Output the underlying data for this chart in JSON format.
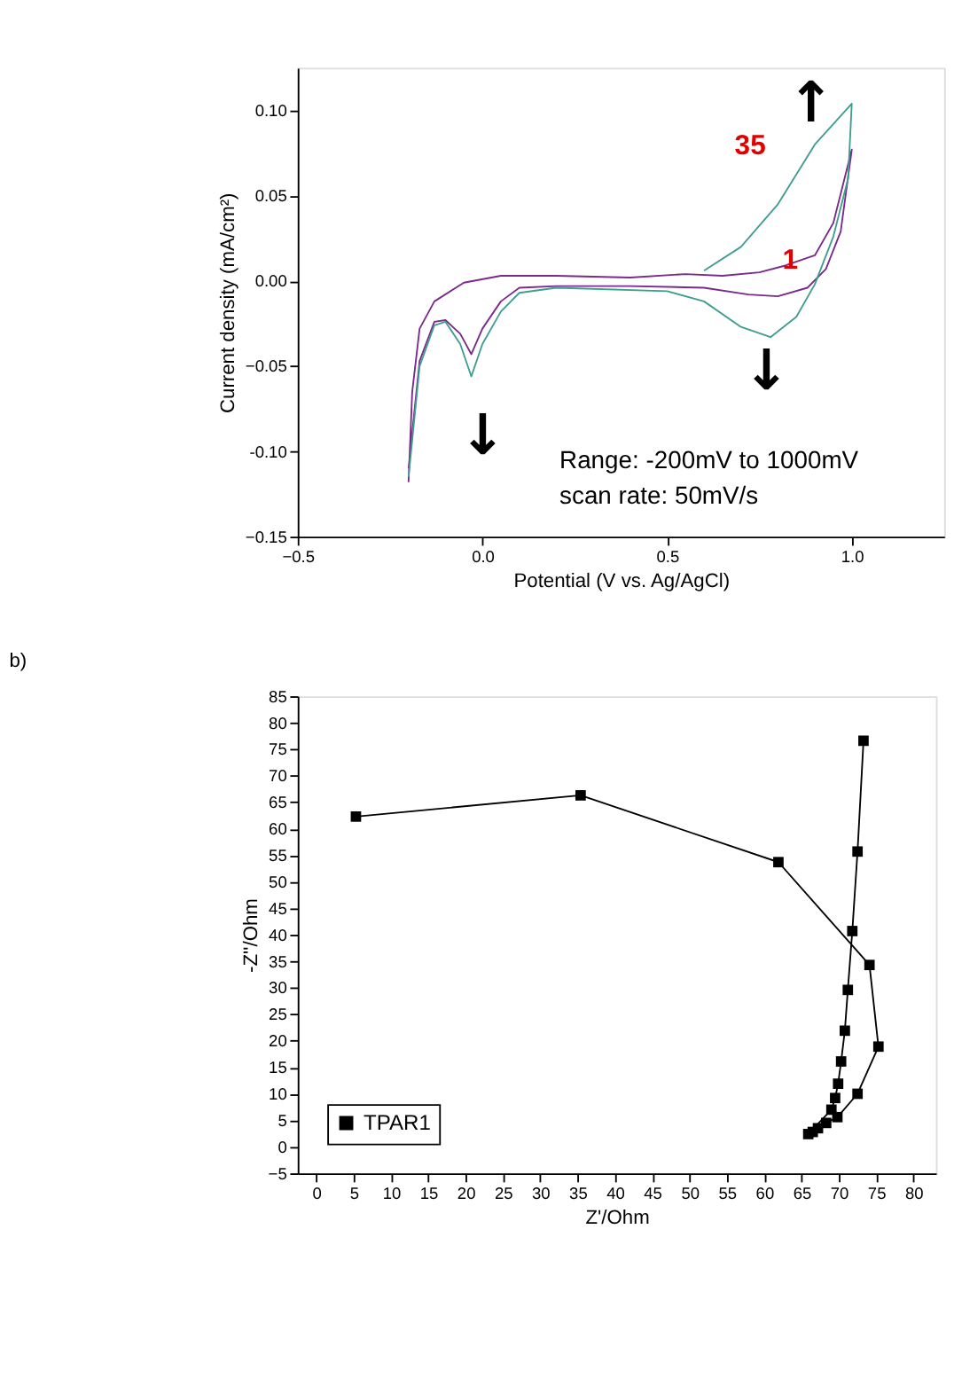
{
  "chart_data": [
    {
      "type": "line",
      "xlabel": "Potential (V vs. Ag/AgCl)",
      "ylabel": "Current density (mA/cm²)",
      "xlim": [
        -0.5,
        1.25
      ],
      "xticks": [
        -0.5,
        {
          "value": 0,
          "label": "0.0"
        },
        0.5,
        {
          "value": 1,
          "label": "1.0"
        }
      ],
      "ylim": [
        -0.15,
        0.125
      ],
      "yticks": [
        -0.15,
        {
          "value": -0.1,
          "label": "-0.10"
        },
        -0.05,
        {
          "value": 0,
          "label": "0.00"
        },
        0.05,
        {
          "value": 0.1,
          "label": "0.10"
        }
      ],
      "grid": false,
      "marker": "none",
      "line_style": "solid",
      "series": [
        {
          "color": "#7a2a8c",
          "x": [
            -0.2,
            -0.19,
            -0.17,
            -0.13,
            -0.05,
            0.05,
            0.2,
            0.4,
            0.55,
            0.65,
            0.75,
            0.82,
            0.9,
            0.95,
            1.0,
            0.97,
            0.93,
            0.88,
            0.8,
            0.72,
            0.6,
            0.4,
            0.2,
            0.1,
            0.05,
            0.0,
            -0.03,
            -0.06,
            -0.1,
            -0.13,
            -0.17,
            -0.2
          ],
          "values": [
            -0.118,
            -0.065,
            -0.028,
            -0.012,
            -0.001,
            0.003,
            0.003,
            0.002,
            0.004,
            0.003,
            0.005,
            0.009,
            0.015,
            0.034,
            0.077,
            0.029,
            0.007,
            -0.004,
            -0.009,
            -0.008,
            -0.004,
            -0.003,
            -0.003,
            -0.004,
            -0.012,
            -0.028,
            -0.043,
            -0.031,
            -0.023,
            -0.024,
            -0.047,
            -0.11
          ]
        },
        {
          "color": "#3f9e8f",
          "x": [
            0.6,
            0.7,
            0.8,
            0.9,
            1.0,
            0.99,
            0.95,
            0.9,
            0.85,
            0.78,
            0.7,
            0.6,
            0.5,
            0.2,
            0.1,
            0.05,
            0.0,
            -0.03,
            -0.06,
            -0.1,
            -0.13,
            -0.17,
            -0.2
          ],
          "values": [
            0.006,
            0.02,
            0.045,
            0.08,
            0.104,
            0.06,
            0.026,
            -0.002,
            -0.021,
            -0.033,
            -0.027,
            -0.012,
            -0.006,
            -0.004,
            -0.007,
            -0.018,
            -0.037,
            -0.056,
            -0.037,
            -0.024,
            -0.026,
            -0.05,
            -0.115
          ]
        }
      ],
      "annotations": [
        "35",
        "1",
        "↑",
        "↓",
        "↓",
        "Range: -200mV to 1000mV",
        "scan rate: 50mV/s"
      ]
    },
    {
      "type": "line",
      "xlabel": "Z'/Ohm",
      "ylabel": "-Z''/Ohm",
      "xlim": [
        -2.5,
        83
      ],
      "xticks": [
        0,
        5,
        10,
        15,
        20,
        25,
        30,
        35,
        40,
        45,
        50,
        55,
        60,
        65,
        70,
        75,
        80
      ],
      "ylim": [
        -5,
        85
      ],
      "yticks": [
        -5,
        0,
        5,
        10,
        15,
        20,
        25,
        30,
        35,
        40,
        45,
        50,
        55,
        60,
        65,
        70,
        75,
        80,
        85
      ],
      "grid": false,
      "legend": "bottom left",
      "marker": "square",
      "line_style": "solid",
      "annotations": [
        "b)"
      ],
      "series": [
        {
          "name": "TPAR1",
          "color": "#000000",
          "x": [
            5.3,
            35.4,
            61.9,
            74.1,
            75.3,
            72.5,
            69.8,
            68.3,
            67.2,
            66.5,
            65.9,
            69.0,
            69.5,
            69.9,
            70.3,
            70.8,
            71.2,
            71.8,
            72.5,
            73.3
          ],
          "values": [
            62.3,
            66.3,
            53.7,
            34.3,
            18.9,
            10.0,
            5.6,
            4.5,
            3.5,
            2.8,
            2.4,
            7.0,
            9.2,
            11.9,
            16.1,
            21.9,
            29.6,
            40.7,
            55.7,
            76.6
          ]
        }
      ]
    }
  ]
}
